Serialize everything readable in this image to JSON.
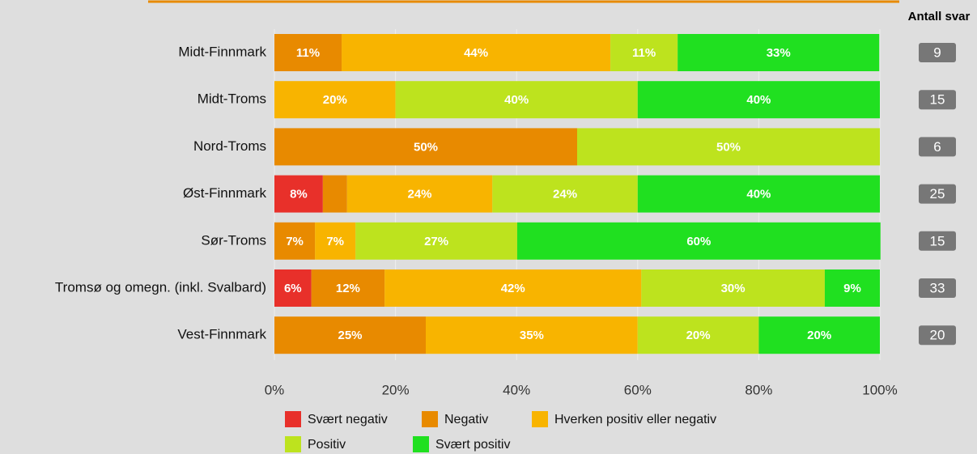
{
  "chart_data": {
    "type": "stacked-bar-horizontal",
    "categories": [
      "Midt-Finnmark",
      "Midt-Troms",
      "Nord-Troms",
      "Øst-Finnmark",
      "Sør-Troms",
      "Tromsø og omegn. (inkl. Svalbard)",
      "Vest-Finnmark"
    ],
    "series": [
      {
        "name": "Svært negativ",
        "color": "#e8302a",
        "values": [
          null,
          null,
          null,
          8,
          null,
          6.1,
          null
        ],
        "value_labels": [
          null,
          null,
          null,
          "8%",
          null,
          "6%",
          null
        ]
      },
      {
        "name": "Negativ",
        "color": "#e88a00",
        "values": [
          11.1,
          null,
          50,
          4,
          6.7,
          12.1,
          25
        ],
        "value_labels": [
          "11%",
          null,
          "50%",
          null,
          "7%",
          "12%",
          "25%"
        ]
      },
      {
        "name": "Hverken positiv eller negativ",
        "color": "#f8b400",
        "values": [
          44.4,
          20,
          null,
          24,
          6.7,
          42.4,
          35
        ],
        "value_labels": [
          "44%",
          "20%",
          null,
          "24%",
          "7%",
          "42%",
          "35%"
        ]
      },
      {
        "name": "Positiv",
        "color": "#bde31e",
        "values": [
          11.1,
          40,
          50,
          24,
          26.7,
          30.3,
          20
        ],
        "value_labels": [
          "11%",
          "40%",
          "50%",
          "24%",
          "27%",
          "30%",
          "20%"
        ]
      },
      {
        "name": "Svært positiv",
        "color": "#20e020",
        "values": [
          33.3,
          40,
          null,
          40,
          60,
          9.1,
          20
        ],
        "value_labels": [
          "33%",
          "40%",
          null,
          "40%",
          "60%",
          "9%",
          "20%"
        ]
      }
    ],
    "xlim": [
      0,
      100
    ],
    "xticks": [
      {
        "value": 0,
        "label": "0%"
      },
      {
        "value": 20,
        "label": "20%"
      },
      {
        "value": 40,
        "label": "40%"
      },
      {
        "value": 60,
        "label": "60%"
      },
      {
        "value": 80,
        "label": "80%"
      },
      {
        "value": 100,
        "label": "100%"
      }
    ],
    "grid": true,
    "counts_title": "Antall svar",
    "counts": [
      9,
      15,
      6,
      25,
      15,
      33,
      20
    ]
  }
}
